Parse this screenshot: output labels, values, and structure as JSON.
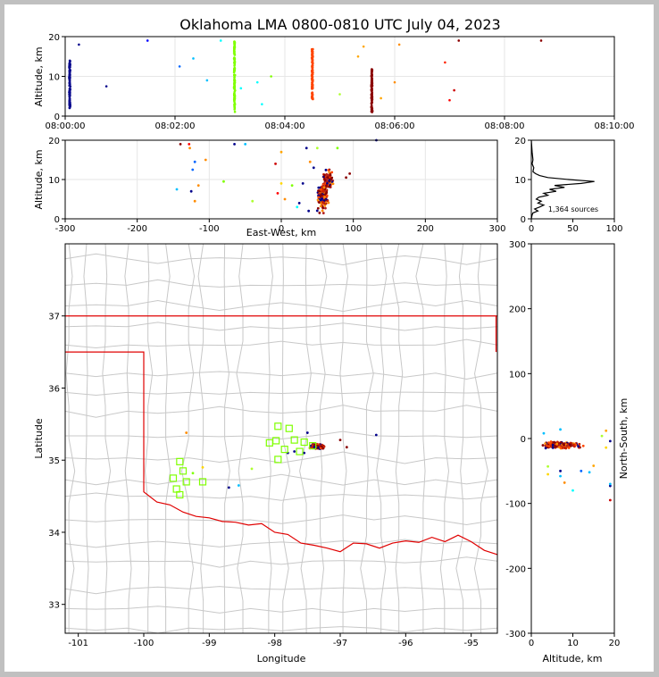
{
  "chart_data": {
    "type": "scatter",
    "title": "Oklahoma LMA 0800-0810 UTC July 04, 2023",
    "panels": {
      "time_altitude": {
        "xlabel": "",
        "ylabel": "Altitude, km",
        "xlim": [
          0,
          600
        ],
        "ylim": [
          0,
          20
        ],
        "xticks": [
          "08:00:00",
          "08:02:00",
          "08:04:00",
          "08:06:00",
          "08:08:00",
          "08:10:00"
        ],
        "yticks": [
          0,
          10,
          20
        ],
        "grid": true
      },
      "ew_altitude": {
        "xlabel": "East-West, km",
        "ylabel": "Altitude, km",
        "xlim": [
          -300,
          300
        ],
        "ylim": [
          0,
          20
        ],
        "xticks": [
          -300,
          -200,
          -100,
          0,
          100,
          200,
          300
        ],
        "yticks": [
          0,
          10,
          20
        ],
        "grid": true
      },
      "histogram": {
        "xlim": [
          0,
          100
        ],
        "ylim": [
          0,
          20
        ],
        "xticks": [
          0,
          50,
          100
        ],
        "yticks": [
          0,
          10,
          20
        ],
        "annotation": "1,364 sources",
        "profile": [
          [
            0,
            0
          ],
          [
            1,
            1
          ],
          [
            2,
            1.5
          ],
          [
            8,
            2
          ],
          [
            4,
            2.5
          ],
          [
            10,
            3
          ],
          [
            15,
            3.5
          ],
          [
            8,
            4
          ],
          [
            12,
            4.5
          ],
          [
            6,
            5
          ],
          [
            9,
            5.5
          ],
          [
            20,
            6
          ],
          [
            15,
            6.5
          ],
          [
            30,
            7
          ],
          [
            22,
            7.5
          ],
          [
            40,
            8
          ],
          [
            28,
            8.5
          ],
          [
            60,
            9
          ],
          [
            76,
            9.5
          ],
          [
            45,
            10
          ],
          [
            20,
            10.5
          ],
          [
            10,
            11
          ],
          [
            5,
            11.5
          ],
          [
            2,
            12
          ],
          [
            3,
            13
          ],
          [
            1,
            14
          ],
          [
            2,
            15
          ],
          [
            1,
            17
          ],
          [
            0,
            20
          ]
        ]
      },
      "plan_view": {
        "xlabel": "Longitude",
        "ylabel": "Latitude",
        "xlim": [
          -101.2,
          -94.6
        ],
        "ylim": [
          32.6,
          38.0
        ],
        "xticks": [
          -101,
          -100,
          -99,
          -98,
          -97,
          -96,
          -95
        ],
        "yticks": [
          33,
          34,
          35,
          36,
          37
        ]
      },
      "alt_ns": {
        "xlabel": "Altitude, km",
        "ylabel": "North-South, km",
        "xlim": [
          0,
          20
        ],
        "ylim": [
          -300,
          300
        ],
        "xticks": [
          0,
          10,
          20
        ],
        "yticks": [
          -300,
          -200,
          -100,
          0,
          100,
          200,
          300
        ]
      }
    },
    "stations": [
      [
        -99.55,
        34.75
      ],
      [
        -99.4,
        34.85
      ],
      [
        -99.35,
        34.7
      ],
      [
        -99.1,
        34.7
      ],
      [
        -99.5,
        34.6
      ],
      [
        -99.45,
        34.52
      ],
      [
        -97.95,
        35.47
      ],
      [
        -97.78,
        35.44
      ],
      [
        -98.08,
        35.24
      ],
      [
        -97.98,
        35.27
      ],
      [
        -97.7,
        35.28
      ],
      [
        -97.85,
        35.15
      ],
      [
        -97.95,
        35.01
      ],
      [
        -97.42,
        35.2
      ],
      [
        -97.55,
        35.25
      ],
      [
        -99.45,
        34.98
      ],
      [
        -97.62,
        35.12
      ]
    ],
    "clusters": [
      {
        "name": "c1",
        "t_center": 5,
        "color": "#00008b",
        "alt_range": [
          2,
          14
        ]
      },
      {
        "name": "c2",
        "t_center": 185,
        "color": "#7fff00",
        "alt_range": [
          1,
          19
        ]
      },
      {
        "name": "c3",
        "t_center": 270,
        "color": "#ff4500",
        "alt_range": [
          4,
          17
        ]
      },
      {
        "name": "c4",
        "t_center": 335,
        "color": "#8b0000",
        "alt_range": [
          1,
          12
        ]
      }
    ],
    "colors": {
      "state_border": "#e00000",
      "county_lines": "#c8c8c8",
      "station_marker": "#7fff00",
      "histogram_line": "#000000",
      "background": "#c0c0c0"
    }
  }
}
